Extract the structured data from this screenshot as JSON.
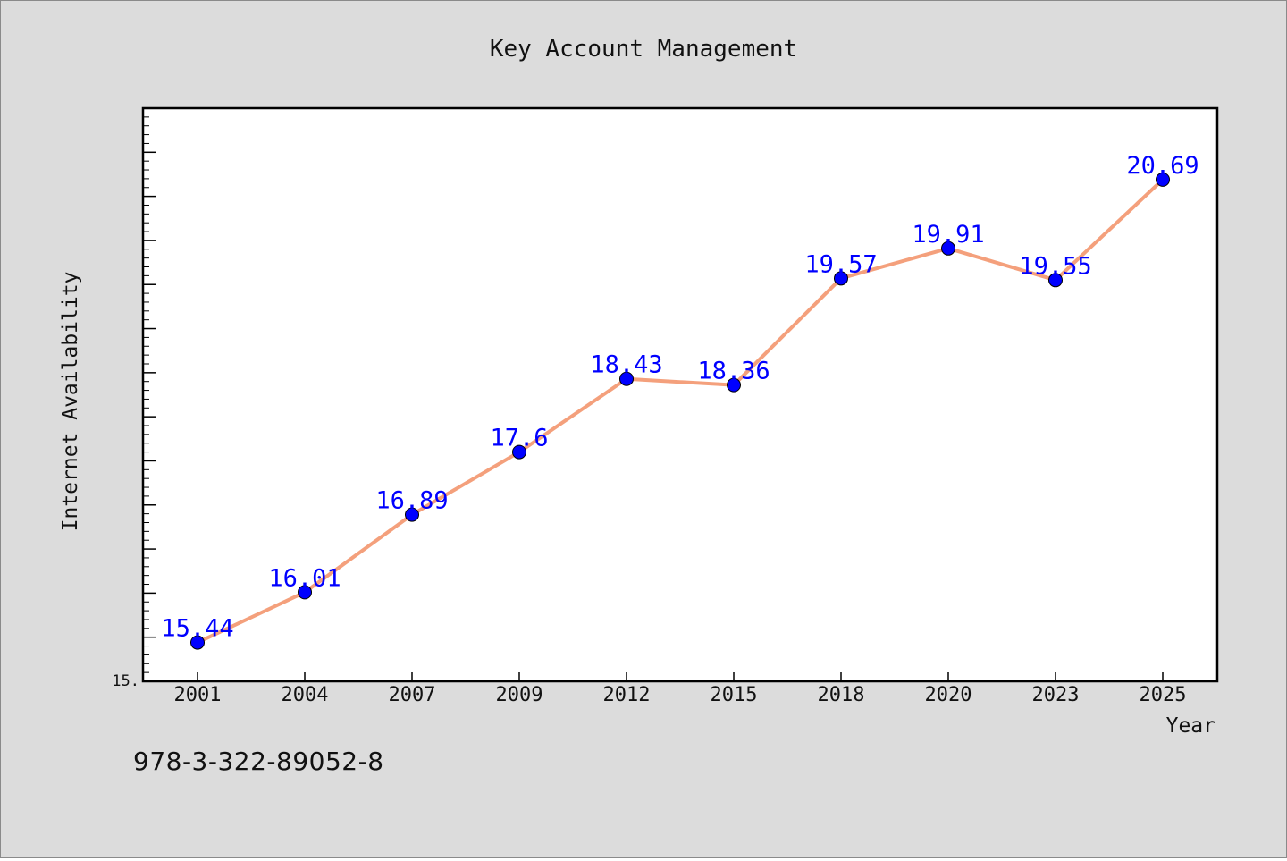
{
  "chart_data": {
    "type": "line",
    "title": "Key Account Management",
    "xlabel": "Year",
    "ylabel": "Internet Availability",
    "categories": [
      "2001",
      "2004",
      "2007",
      "2009",
      "2012",
      "2015",
      "2018",
      "2020",
      "2023",
      "2025"
    ],
    "series": [
      {
        "values": [
          15.44,
          16.01,
          16.89,
          17.6,
          18.43,
          18.36,
          19.57,
          19.91,
          19.55,
          20.69
        ]
      }
    ],
    "data_labels": [
      "15.44",
      "16.01",
      "16.89",
      "17.6",
      "18.43",
      "18.36",
      "19.57",
      "19.91",
      "19.55",
      "20.69"
    ],
    "ylim": [
      15.0,
      21.5
    ],
    "y_tick_label": "15.",
    "grid": false,
    "legend": "none",
    "colors": {
      "line": "#f4a07c",
      "marker": "#0000ff",
      "label": "#0000ff",
      "plot_background": "#ffffff",
      "figure_background": "#dcdcdc"
    }
  },
  "footer": {
    "isbn": "978-3-322-89052-8"
  }
}
